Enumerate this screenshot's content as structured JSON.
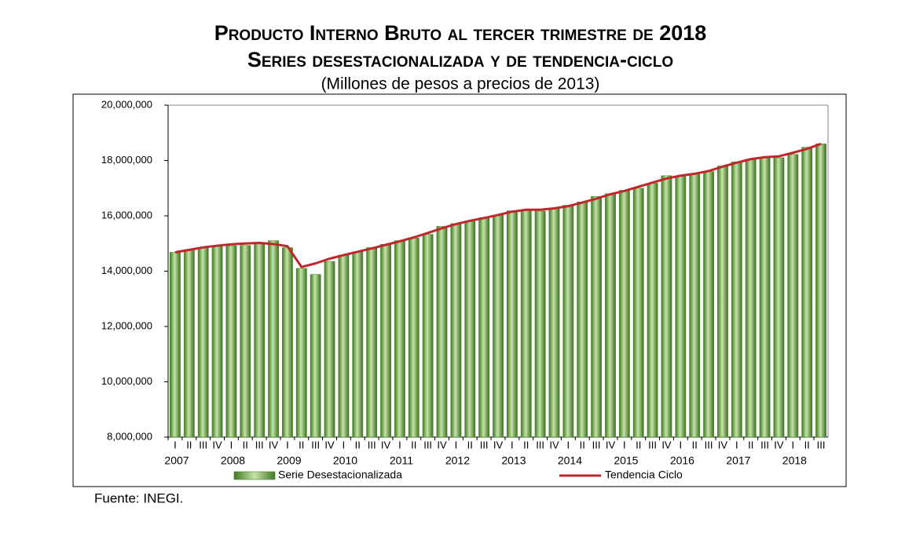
{
  "chart_data": {
    "type": "bar",
    "title": "Producto Interno Bruto al tercer trimestre de 2018",
    "subtitle": "Series desestacionalizada y de tendencia-ciclo",
    "units": "(Millones de pesos a precios de 2013)",
    "source": "Fuente: INEGI.",
    "categories": [
      "I",
      "II",
      "III",
      "IV",
      "I",
      "II",
      "III",
      "IV",
      "I",
      "II",
      "III",
      "IV",
      "I",
      "II",
      "III",
      "IV",
      "I",
      "II",
      "III",
      "IV",
      "I",
      "II",
      "III",
      "IV",
      "I",
      "II",
      "III",
      "IV",
      "I",
      "II",
      "III",
      "IV",
      "I",
      "II",
      "III",
      "IV",
      "I",
      "II",
      "III",
      "IV",
      "I",
      "II",
      "III",
      "IV",
      "I",
      "II",
      "III"
    ],
    "years": [
      "2007",
      "2008",
      "2009",
      "2010",
      "2011",
      "2012",
      "2013",
      "2014",
      "2015",
      "2016",
      "2017",
      "2018"
    ],
    "series": [
      {
        "name": "Serie Desestacionalizada",
        "type": "bar",
        "color": "#4a8a2a",
        "values": [
          14680000,
          14780000,
          14850000,
          14900000,
          14920000,
          14930000,
          15000000,
          15100000,
          14850000,
          14100000,
          13880000,
          14350000,
          14580000,
          14700000,
          14850000,
          14970000,
          15100000,
          15200000,
          15330000,
          15620000,
          15720000,
          15800000,
          15930000,
          16020000,
          16180000,
          16200000,
          16170000,
          16280000,
          16380000,
          16500000,
          16700000,
          16800000,
          16920000,
          17000000,
          17180000,
          17450000,
          17430000,
          17500000,
          17600000,
          17800000,
          17950000,
          18050000,
          18120000,
          18100000,
          18220000,
          18480000,
          18600000
        ]
      },
      {
        "name": "Tendencia Ciclo",
        "type": "line",
        "color": "#c0262c",
        "values": [
          14680000,
          14770000,
          14860000,
          14920000,
          14970000,
          15000000,
          15020000,
          14980000,
          14900000,
          14150000,
          14280000,
          14450000,
          14580000,
          14700000,
          14820000,
          14950000,
          15080000,
          15220000,
          15380000,
          15550000,
          15700000,
          15820000,
          15920000,
          16030000,
          16150000,
          16220000,
          16220000,
          16270000,
          16350000,
          16480000,
          16620000,
          16780000,
          16900000,
          17050000,
          17200000,
          17350000,
          17450000,
          17520000,
          17620000,
          17780000,
          17920000,
          18050000,
          18120000,
          18150000,
          18280000,
          18420000,
          18600000
        ]
      }
    ],
    "ylim": [
      8000000,
      20000000
    ],
    "yticks": [
      {
        "value": 8000000,
        "label": "8,000,000"
      },
      {
        "value": 10000000,
        "label": "10,000,000"
      },
      {
        "value": 12000000,
        "label": "12,000,000"
      },
      {
        "value": 14000000,
        "label": "14,000,000"
      },
      {
        "value": 16000000,
        "label": "16,000,000"
      },
      {
        "value": 18000000,
        "label": "18,000,000"
      },
      {
        "value": 20000000,
        "label": "20,000,000"
      }
    ],
    "grid": false
  }
}
